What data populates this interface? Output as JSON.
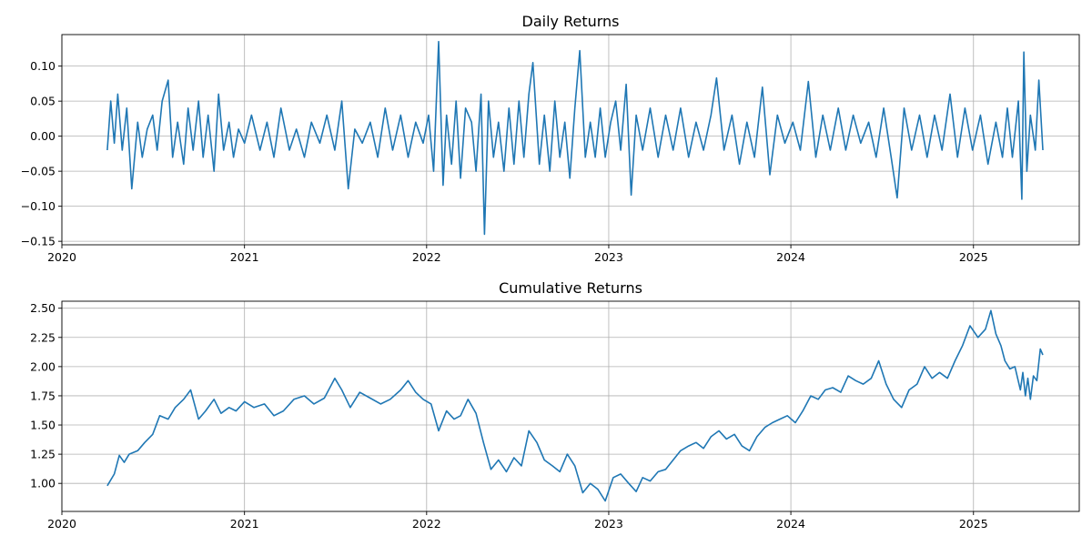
{
  "chart_data": [
    {
      "type": "line",
      "title": "Daily Returns",
      "xlabel": "",
      "ylabel": "",
      "x_axis": "date",
      "xlim": [
        "2020-01-01",
        "2025-08-01"
      ],
      "ylim": [
        -0.155,
        0.145
      ],
      "x_ticks": [
        "2020",
        "2021",
        "2022",
        "2023",
        "2024",
        "2025"
      ],
      "y_ticks": [
        "−0.15",
        "−0.10",
        "−0.05",
        "0.00",
        "0.05",
        "0.10"
      ],
      "y_tick_values": [
        -0.15,
        -0.1,
        -0.05,
        0.0,
        0.05,
        0.1
      ],
      "grid": true,
      "color": "#1f77b4",
      "series": [
        {
          "x": [
            "2020-04-01",
            "2020-04-08",
            "2020-04-15",
            "2020-04-22",
            "2020-05-01",
            "2020-05-10",
            "2020-05-20",
            "2020-06-01",
            "2020-06-10",
            "2020-06-20",
            "2020-07-01",
            "2020-07-10",
            "2020-07-20",
            "2020-08-01",
            "2020-08-10",
            "2020-08-20",
            "2020-09-01",
            "2020-09-10",
            "2020-09-20",
            "2020-10-01",
            "2020-10-10",
            "2020-10-20",
            "2020-11-01",
            "2020-11-10",
            "2020-11-20",
            "2020-12-01",
            "2020-12-10",
            "2020-12-20",
            "2021-01-01",
            "2021-01-15",
            "2021-02-01",
            "2021-02-15",
            "2021-03-01",
            "2021-03-15",
            "2021-04-01",
            "2021-04-15",
            "2021-05-01",
            "2021-05-15",
            "2021-06-01",
            "2021-06-15",
            "2021-07-01",
            "2021-07-15",
            "2021-07-28",
            "2021-08-10",
            "2021-08-25",
            "2021-09-10",
            "2021-09-25",
            "2021-10-10",
            "2021-10-25",
            "2021-11-10",
            "2021-11-25",
            "2021-12-10",
            "2021-12-25",
            "2022-01-05",
            "2022-01-15",
            "2022-01-25",
            "2022-02-03",
            "2022-02-10",
            "2022-02-20",
            "2022-03-01",
            "2022-03-10",
            "2022-03-20",
            "2022-04-01",
            "2022-04-10",
            "2022-04-20",
            "2022-04-27",
            "2022-05-05",
            "2022-05-15",
            "2022-05-25",
            "2022-06-05",
            "2022-06-15",
            "2022-06-25",
            "2022-07-05",
            "2022-07-15",
            "2022-07-25",
            "2022-08-02",
            "2022-08-15",
            "2022-08-25",
            "2022-09-05",
            "2022-09-15",
            "2022-09-25",
            "2022-10-05",
            "2022-10-15",
            "2022-10-25",
            "2022-11-04",
            "2022-11-15",
            "2022-11-25",
            "2022-12-05",
            "2022-12-15",
            "2022-12-25",
            "2023-01-05",
            "2023-01-15",
            "2023-01-25",
            "2023-02-05",
            "2023-02-15",
            "2023-02-25",
            "2023-03-10",
            "2023-03-25",
            "2023-04-10",
            "2023-04-25",
            "2023-05-10",
            "2023-05-25",
            "2023-06-10",
            "2023-06-25",
            "2023-07-10",
            "2023-07-25",
            "2023-08-05",
            "2023-08-20",
            "2023-09-05",
            "2023-09-20",
            "2023-10-05",
            "2023-10-20",
            "2023-11-05",
            "2023-11-20",
            "2023-12-05",
            "2023-12-20",
            "2024-01-05",
            "2024-01-20",
            "2024-02-05",
            "2024-02-20",
            "2024-03-05",
            "2024-03-20",
            "2024-04-05",
            "2024-04-20",
            "2024-05-05",
            "2024-05-20",
            "2024-06-05",
            "2024-06-20",
            "2024-07-05",
            "2024-07-20",
            "2024-08-01",
            "2024-08-15",
            "2024-08-30",
            "2024-09-15",
            "2024-09-30",
            "2024-10-15",
            "2024-10-30",
            "2024-11-15",
            "2024-11-30",
            "2024-12-15",
            "2024-12-30",
            "2025-01-15",
            "2025-01-30",
            "2025-02-15",
            "2025-02-28",
            "2025-03-10",
            "2025-03-20",
            "2025-04-01",
            "2025-04-08",
            "2025-04-12",
            "2025-04-18",
            "2025-04-25",
            "2025-05-05",
            "2025-05-12",
            "2025-05-20"
          ],
          "y": [
            -0.02,
            0.05,
            -0.01,
            0.06,
            -0.02,
            0.04,
            -0.075,
            0.02,
            -0.03,
            0.01,
            0.03,
            -0.02,
            0.05,
            0.08,
            -0.03,
            0.02,
            -0.04,
            0.04,
            -0.02,
            0.05,
            -0.03,
            0.03,
            -0.05,
            0.06,
            -0.02,
            0.02,
            -0.03,
            0.01,
            -0.01,
            0.03,
            -0.02,
            0.02,
            -0.03,
            0.04,
            -0.02,
            0.01,
            -0.03,
            0.02,
            -0.01,
            0.03,
            -0.02,
            0.05,
            -0.075,
            0.01,
            -0.01,
            0.02,
            -0.03,
            0.04,
            -0.02,
            0.03,
            -0.03,
            0.02,
            -0.01,
            0.03,
            -0.05,
            0.135,
            -0.07,
            0.03,
            -0.04,
            0.05,
            -0.06,
            0.04,
            0.02,
            -0.05,
            0.06,
            -0.14,
            0.05,
            -0.03,
            0.02,
            -0.05,
            0.04,
            -0.04,
            0.05,
            -0.03,
            0.06,
            0.105,
            -0.04,
            0.03,
            -0.05,
            0.05,
            -0.03,
            0.02,
            -0.06,
            0.04,
            0.122,
            -0.03,
            0.02,
            -0.03,
            0.04,
            -0.03,
            0.02,
            0.05,
            -0.02,
            0.074,
            -0.084,
            0.03,
            -0.02,
            0.04,
            -0.03,
            0.03,
            -0.02,
            0.04,
            -0.03,
            0.02,
            -0.02,
            0.03,
            0.083,
            -0.02,
            0.03,
            -0.04,
            0.02,
            -0.03,
            0.07,
            -0.055,
            0.03,
            -0.01,
            0.02,
            -0.02,
            0.078,
            -0.03,
            0.03,
            -0.02,
            0.04,
            -0.02,
            0.03,
            -0.01,
            0.02,
            -0.03,
            0.04,
            -0.03,
            -0.088,
            0.04,
            -0.02,
            0.03,
            -0.03,
            0.03,
            -0.02,
            0.06,
            -0.03,
            0.04,
            -0.02,
            0.03,
            -0.04,
            0.02,
            -0.03,
            0.04,
            -0.03,
            0.05,
            -0.09,
            0.12,
            -0.05,
            0.03,
            -0.02,
            0.08,
            -0.02
          ]
        }
      ]
    },
    {
      "type": "line",
      "title": "Cumulative Returns",
      "xlabel": "",
      "ylabel": "",
      "x_axis": "date",
      "xlim": [
        "2020-01-01",
        "2025-08-01"
      ],
      "ylim": [
        0.76,
        2.56
      ],
      "x_ticks": [
        "2020",
        "2021",
        "2022",
        "2023",
        "2024",
        "2025"
      ],
      "y_ticks": [
        "1.00",
        "1.25",
        "1.50",
        "1.75",
        "2.00",
        "2.25",
        "2.50"
      ],
      "y_tick_values": [
        1.0,
        1.25,
        1.5,
        1.75,
        2.0,
        2.25,
        2.5
      ],
      "grid": true,
      "color": "#1f77b4",
      "series": [
        {
          "x": [
            "2020-04-01",
            "2020-04-15",
            "2020-04-25",
            "2020-05-05",
            "2020-05-15",
            "2020-06-01",
            "2020-06-15",
            "2020-07-01",
            "2020-07-15",
            "2020-08-01",
            "2020-08-15",
            "2020-09-01",
            "2020-09-15",
            "2020-10-01",
            "2020-10-15",
            "2020-11-01",
            "2020-11-15",
            "2020-12-01",
            "2020-12-15",
            "2021-01-01",
            "2021-01-20",
            "2021-02-10",
            "2021-03-01",
            "2021-03-20",
            "2021-04-10",
            "2021-05-01",
            "2021-05-20",
            "2021-06-10",
            "2021-07-01",
            "2021-07-15",
            "2021-08-01",
            "2021-08-20",
            "2021-09-10",
            "2021-10-01",
            "2021-10-20",
            "2021-11-10",
            "2021-11-25",
            "2021-12-10",
            "2021-12-25",
            "2022-01-10",
            "2022-01-25",
            "2022-02-10",
            "2022-02-25",
            "2022-03-10",
            "2022-03-25",
            "2022-04-10",
            "2022-04-25",
            "2022-05-10",
            "2022-05-25",
            "2022-06-10",
            "2022-06-25",
            "2022-07-10",
            "2022-07-25",
            "2022-08-10",
            "2022-08-25",
            "2022-09-10",
            "2022-09-25",
            "2022-10-10",
            "2022-10-25",
            "2022-11-10",
            "2022-11-25",
            "2022-12-10",
            "2022-12-25",
            "2023-01-10",
            "2023-01-25",
            "2023-02-10",
            "2023-02-25",
            "2023-03-10",
            "2023-03-25",
            "2023-04-10",
            "2023-04-25",
            "2023-05-10",
            "2023-05-25",
            "2023-06-10",
            "2023-06-25",
            "2023-07-10",
            "2023-07-25",
            "2023-08-10",
            "2023-08-25",
            "2023-09-10",
            "2023-09-25",
            "2023-10-10",
            "2023-10-25",
            "2023-11-10",
            "2023-11-25",
            "2023-12-10",
            "2023-12-25",
            "2024-01-10",
            "2024-01-25",
            "2024-02-10",
            "2024-02-25",
            "2024-03-10",
            "2024-03-25",
            "2024-04-10",
            "2024-04-25",
            "2024-05-10",
            "2024-05-25",
            "2024-06-10",
            "2024-06-25",
            "2024-07-10",
            "2024-07-25",
            "2024-08-10",
            "2024-08-25",
            "2024-09-10",
            "2024-09-25",
            "2024-10-10",
            "2024-10-25",
            "2024-11-10",
            "2024-11-25",
            "2024-12-10",
            "2024-12-25",
            "2025-01-10",
            "2025-01-25",
            "2025-02-05",
            "2025-02-15",
            "2025-02-25",
            "2025-03-05",
            "2025-03-15",
            "2025-03-25",
            "2025-04-05",
            "2025-04-10",
            "2025-04-15",
            "2025-04-20",
            "2025-04-25",
            "2025-05-01",
            "2025-05-08",
            "2025-05-15",
            "2025-05-20"
          ],
          "y": [
            0.98,
            1.08,
            1.24,
            1.18,
            1.25,
            1.28,
            1.35,
            1.42,
            1.58,
            1.55,
            1.65,
            1.72,
            1.8,
            1.55,
            1.62,
            1.72,
            1.6,
            1.65,
            1.62,
            1.7,
            1.65,
            1.68,
            1.58,
            1.62,
            1.72,
            1.75,
            1.68,
            1.73,
            1.9,
            1.8,
            1.65,
            1.78,
            1.73,
            1.68,
            1.72,
            1.8,
            1.88,
            1.78,
            1.72,
            1.68,
            1.45,
            1.62,
            1.55,
            1.58,
            1.72,
            1.6,
            1.35,
            1.12,
            1.2,
            1.1,
            1.22,
            1.15,
            1.45,
            1.35,
            1.2,
            1.15,
            1.1,
            1.25,
            1.15,
            0.92,
            1.0,
            0.95,
            0.85,
            1.05,
            1.08,
            1.0,
            0.93,
            1.05,
            1.02,
            1.1,
            1.12,
            1.2,
            1.28,
            1.32,
            1.35,
            1.3,
            1.4,
            1.45,
            1.38,
            1.42,
            1.32,
            1.28,
            1.4,
            1.48,
            1.52,
            1.55,
            1.58,
            1.52,
            1.62,
            1.75,
            1.72,
            1.8,
            1.82,
            1.78,
            1.92,
            1.88,
            1.85,
            1.9,
            2.05,
            1.85,
            1.72,
            1.65,
            1.8,
            1.85,
            2.0,
            1.9,
            1.95,
            1.9,
            2.05,
            2.18,
            2.35,
            2.25,
            2.32,
            2.48,
            2.28,
            2.18,
            2.05,
            1.98,
            2.0,
            1.8,
            1.95,
            1.75,
            1.9,
            1.72,
            1.92,
            1.88,
            2.15,
            2.1
          ]
        }
      ]
    }
  ]
}
